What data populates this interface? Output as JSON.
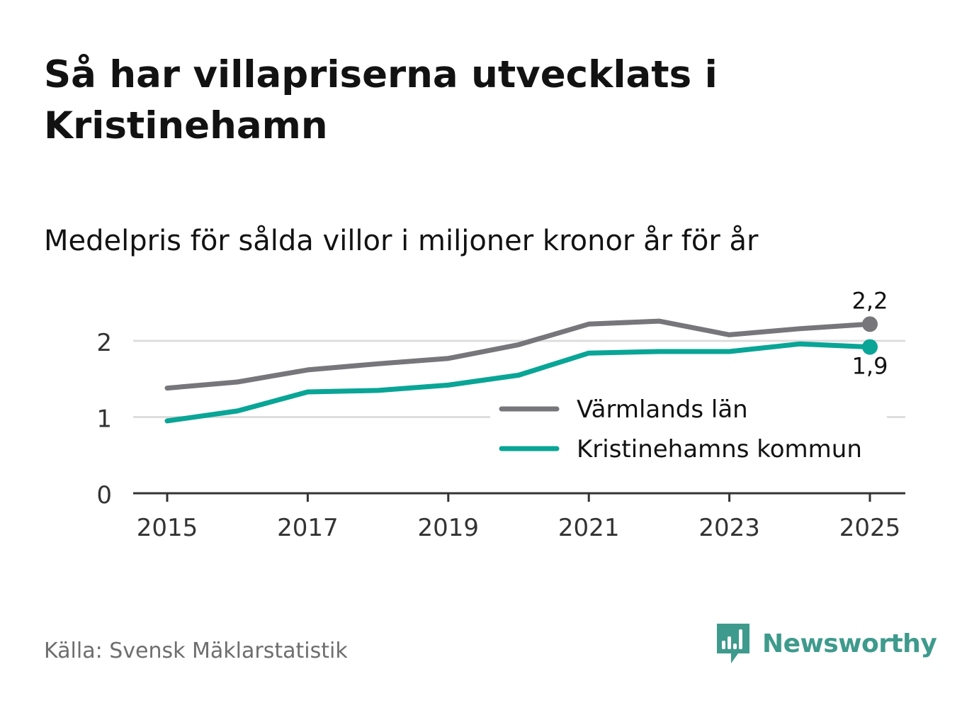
{
  "title": "Så har villapriserna utvecklats i Kristinehamn",
  "subtitle": "Medelpris för sålda villor i miljoner kronor år för år",
  "source": "Källa: Svensk Mäklarstatistik",
  "brand": "Newsworthy",
  "colors": {
    "lan": "#76767b",
    "kommun": "#09a596",
    "grid": "#dddddd",
    "axis": "#333333",
    "brand": "#3e9a8c"
  },
  "chart_data": {
    "type": "line",
    "title": "Medelpris för sålda villor i miljoner kronor år för år",
    "xlabel": "",
    "ylabel": "",
    "x": [
      2015,
      2016,
      2017,
      2018,
      2019,
      2020,
      2021,
      2022,
      2023,
      2024,
      2025
    ],
    "xticks": [
      "2015",
      "2017",
      "2019",
      "2021",
      "2023",
      "2025"
    ],
    "yticks": [
      "0",
      "1",
      "2"
    ],
    "ylim": [
      0,
      2.4
    ],
    "legend_position": "bottom-right",
    "series": [
      {
        "name": "Värmlands län",
        "values": [
          1.38,
          1.46,
          1.62,
          1.7,
          1.77,
          1.95,
          2.22,
          2.26,
          2.08,
          2.16,
          2.22
        ],
        "end_label": "2,2"
      },
      {
        "name": "Kristinehamns kommun",
        "values": [
          0.95,
          1.08,
          1.33,
          1.35,
          1.42,
          1.55,
          1.84,
          1.86,
          1.86,
          1.96,
          1.92
        ],
        "end_label": "1,9"
      }
    ]
  }
}
